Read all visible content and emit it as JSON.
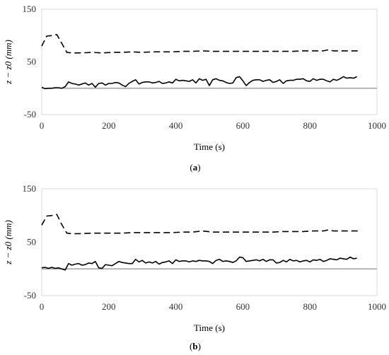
{
  "chart_data": [
    {
      "type": "line",
      "panel_label": "(a)",
      "panel_letter": "a",
      "xlabel": "Time (s)",
      "ylabel": "z − z0 (mm)",
      "xlim": [
        0,
        1000
      ],
      "ylim": [
        -50,
        150
      ],
      "xticks": [
        0,
        200,
        400,
        600,
        800,
        1000
      ],
      "yticks": [
        -50,
        50,
        150
      ],
      "grid": false,
      "series": [
        {
          "style": "dashed",
          "color": "#000000",
          "x": [
            0,
            15,
            30,
            45,
            60,
            75,
            90,
            120,
            150,
            180,
            210,
            240,
            270,
            300,
            330,
            360,
            390,
            420,
            450,
            480,
            510,
            540,
            570,
            600,
            630,
            660,
            690,
            720,
            750,
            780,
            810,
            840,
            855,
            870,
            900,
            945
          ],
          "values": [
            80,
            99,
            100,
            102,
            85,
            68,
            67,
            67,
            68,
            67,
            68,
            68,
            69,
            68,
            69,
            69,
            69,
            70,
            70,
            71,
            70,
            70,
            70,
            70,
            70,
            70,
            70,
            70,
            70,
            71,
            71,
            71,
            73,
            71,
            71,
            71
          ]
        },
        {
          "style": "solid",
          "color": "#000000",
          "x": [
            0,
            10,
            20,
            30,
            40,
            50,
            60,
            70,
            80,
            90,
            100,
            110,
            120,
            130,
            140,
            150,
            160,
            170,
            180,
            190,
            200,
            210,
            220,
            230,
            240,
            250,
            260,
            270,
            280,
            290,
            300,
            310,
            320,
            330,
            340,
            350,
            360,
            370,
            380,
            390,
            400,
            410,
            420,
            430,
            440,
            450,
            460,
            470,
            480,
            490,
            500,
            510,
            520,
            530,
            540,
            550,
            560,
            570,
            580,
            590,
            600,
            610,
            620,
            630,
            640,
            650,
            660,
            670,
            680,
            690,
            700,
            710,
            720,
            730,
            740,
            750,
            760,
            770,
            780,
            790,
            800,
            810,
            820,
            830,
            840,
            850,
            860,
            870,
            880,
            890,
            900,
            910,
            920,
            930,
            940
          ],
          "values": [
            2,
            -1,
            0,
            0,
            1,
            1,
            0,
            3,
            12,
            9,
            8,
            6,
            8,
            10,
            6,
            9,
            2,
            9,
            10,
            6,
            9,
            9,
            11,
            10,
            6,
            3,
            9,
            13,
            16,
            8,
            11,
            12,
            12,
            10,
            11,
            13,
            9,
            10,
            12,
            10,
            17,
            14,
            15,
            14,
            13,
            16,
            10,
            18,
            15,
            17,
            5,
            16,
            18,
            15,
            14,
            11,
            9,
            10,
            20,
            22,
            14,
            5,
            11,
            15,
            16,
            16,
            13,
            15,
            16,
            11,
            13,
            16,
            9,
            14,
            15,
            15,
            17,
            17,
            18,
            14,
            13,
            18,
            15,
            17,
            17,
            14,
            12,
            17,
            15,
            18,
            22,
            19,
            20,
            19,
            22
          ]
        }
      ],
      "reference_line": {
        "y": 0,
        "color": "#a0a0a0"
      }
    },
    {
      "type": "line",
      "panel_label": "(b)",
      "panel_letter": "b",
      "xlabel": "Time (s)",
      "ylabel": "z − z0 (mm)",
      "xlim": [
        0,
        1000
      ],
      "ylim": [
        -50,
        150
      ],
      "xticks": [
        0,
        200,
        400,
        600,
        800,
        1000
      ],
      "yticks": [
        -50,
        50,
        150
      ],
      "grid": false,
      "series": [
        {
          "style": "dashed",
          "color": "#000000",
          "x": [
            0,
            15,
            30,
            45,
            60,
            75,
            90,
            120,
            150,
            180,
            210,
            240,
            270,
            300,
            330,
            360,
            390,
            420,
            450,
            480,
            510,
            540,
            570,
            600,
            630,
            660,
            690,
            720,
            750,
            780,
            810,
            840,
            855,
            870,
            900,
            945
          ],
          "values": [
            82,
            99,
            100,
            102,
            83,
            67,
            66,
            66,
            67,
            67,
            67,
            67,
            68,
            68,
            68,
            68,
            68,
            69,
            69,
            71,
            69,
            69,
            69,
            69,
            69,
            69,
            69,
            70,
            70,
            70,
            71,
            71,
            73,
            71,
            71,
            71
          ]
        },
        {
          "style": "solid",
          "color": "#000000",
          "x": [
            0,
            10,
            20,
            30,
            40,
            50,
            60,
            70,
            80,
            90,
            100,
            110,
            120,
            130,
            140,
            150,
            160,
            170,
            180,
            190,
            200,
            210,
            220,
            230,
            240,
            250,
            260,
            270,
            280,
            290,
            300,
            310,
            320,
            330,
            340,
            350,
            360,
            370,
            380,
            390,
            400,
            410,
            420,
            430,
            440,
            450,
            460,
            470,
            480,
            490,
            500,
            510,
            520,
            530,
            540,
            550,
            560,
            570,
            580,
            590,
            600,
            610,
            620,
            630,
            640,
            650,
            660,
            670,
            680,
            690,
            700,
            710,
            720,
            730,
            740,
            750,
            760,
            770,
            780,
            790,
            800,
            810,
            820,
            830,
            840,
            850,
            860,
            870,
            880,
            890,
            900,
            910,
            920,
            930,
            940
          ],
          "values": [
            2,
            3,
            1,
            3,
            1,
            2,
            0,
            -2,
            10,
            7,
            9,
            10,
            7,
            8,
            11,
            10,
            14,
            2,
            1,
            8,
            7,
            6,
            10,
            14,
            12,
            11,
            10,
            10,
            18,
            13,
            16,
            11,
            13,
            11,
            14,
            9,
            12,
            13,
            15,
            10,
            17,
            14,
            15,
            15,
            13,
            15,
            14,
            16,
            15,
            15,
            14,
            10,
            16,
            18,
            14,
            15,
            14,
            12,
            15,
            22,
            21,
            14,
            15,
            16,
            17,
            15,
            18,
            14,
            17,
            17,
            11,
            12,
            16,
            13,
            18,
            15,
            16,
            13,
            15,
            16,
            13,
            17,
            16,
            18,
            14,
            16,
            19,
            18,
            17,
            20,
            19,
            18,
            22,
            19,
            20
          ]
        }
      ],
      "reference_line": {
        "y": 0,
        "color": "#a0a0a0"
      }
    }
  ]
}
